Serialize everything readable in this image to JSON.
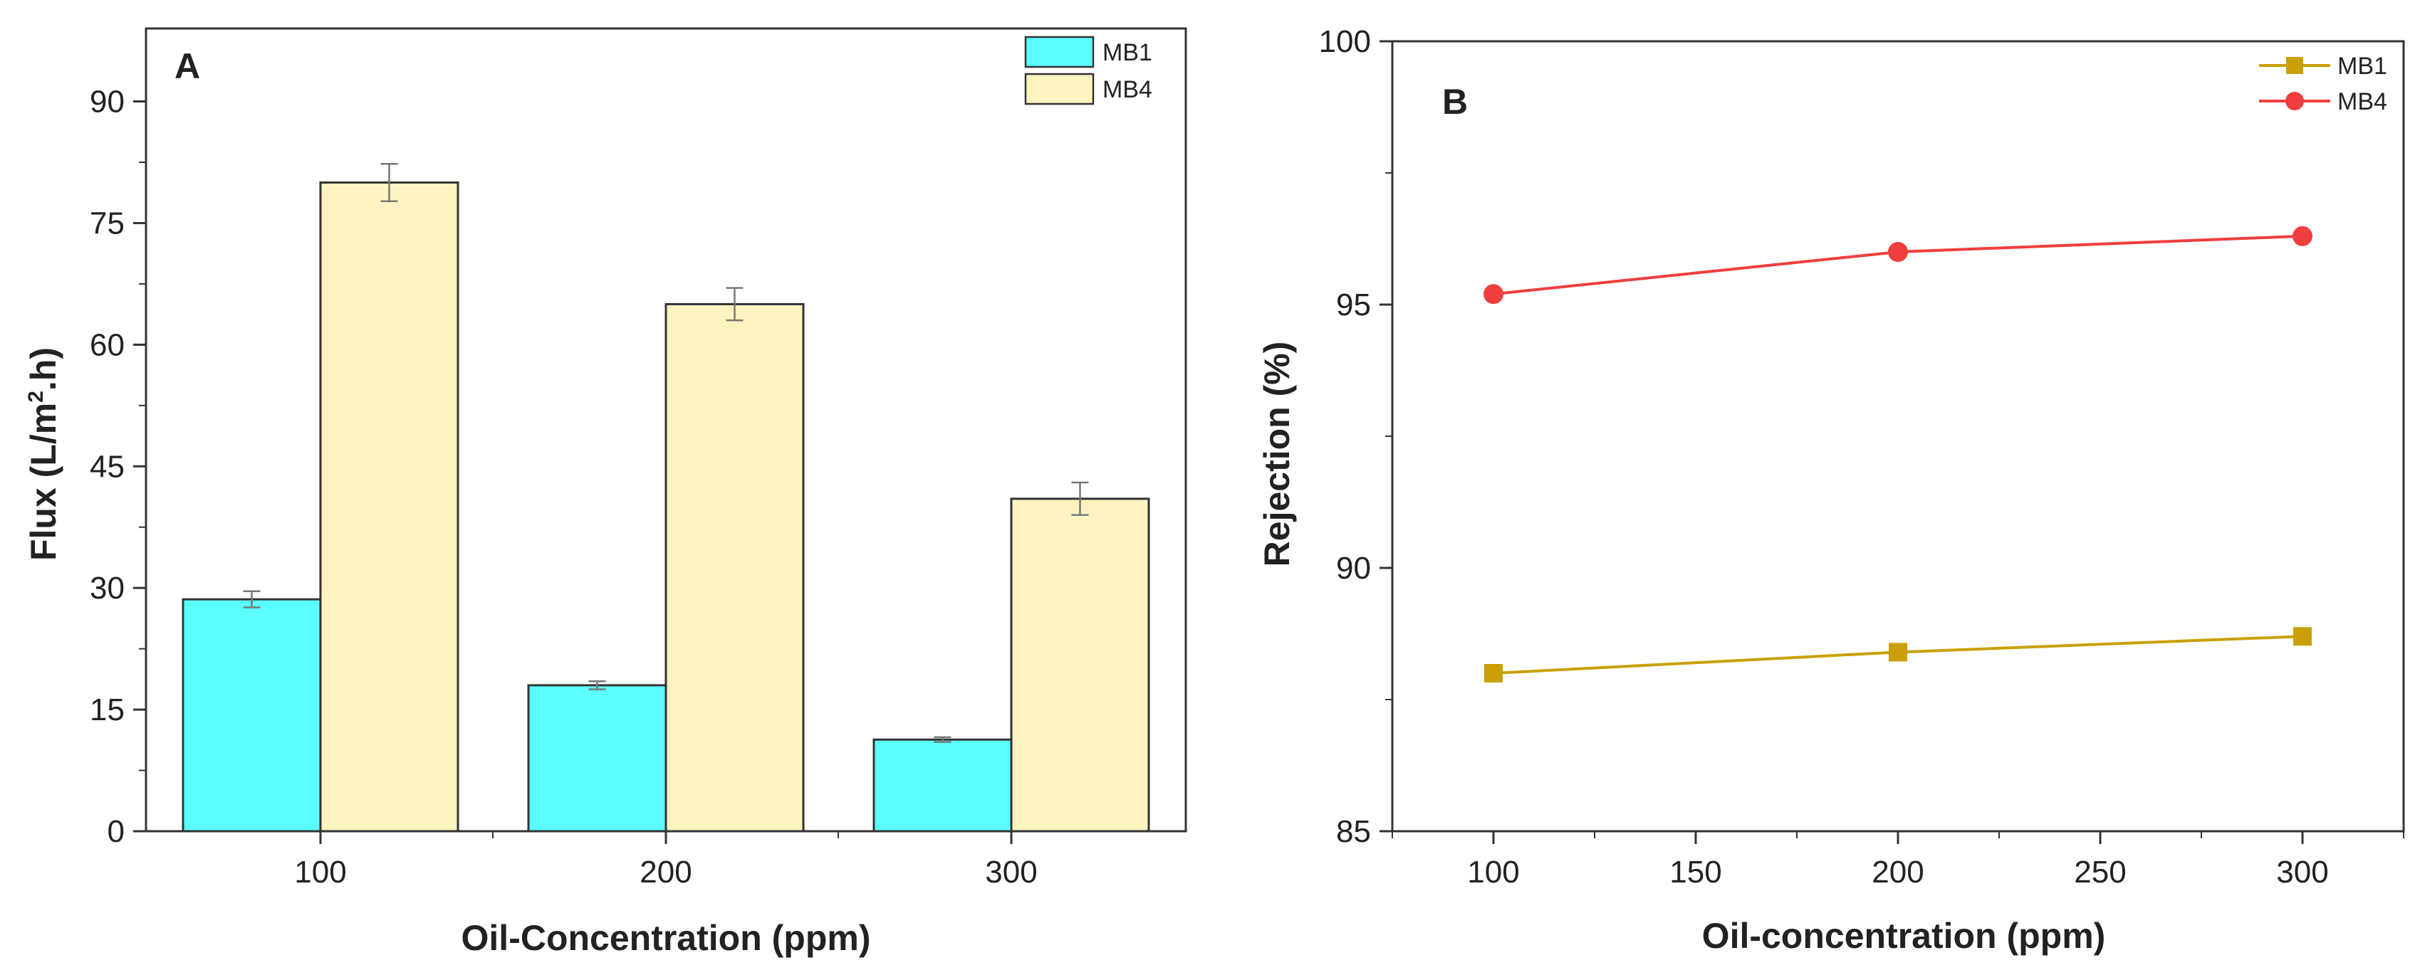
{
  "chart_data": [
    {
      "panel": "A",
      "type": "bar",
      "categories": [
        "100",
        "200",
        "300"
      ],
      "series": [
        {
          "name": "MB1",
          "color": "#5AFFFF",
          "values": [
            28.6,
            18.0,
            11.3
          ],
          "errors": [
            1.0,
            0.5,
            0.3
          ]
        },
        {
          "name": "MB4",
          "color": "#FFF3C0",
          "values": [
            80.0,
            65.0,
            41.0
          ],
          "errors": [
            2.3,
            2.0,
            2.0
          ]
        }
      ],
      "xlabel": "Oil-Concentration (ppm)",
      "ylabel_parts": [
        "Flux (L/m",
        "2",
        ".h)"
      ],
      "ylim": [
        0,
        99
      ],
      "yticks": [
        0,
        15,
        30,
        45,
        60,
        75,
        90
      ],
      "ytick_labels": [
        "0",
        "15",
        "30",
        "45",
        "60",
        "75",
        "90"
      ],
      "legend_position": "top-right"
    },
    {
      "panel": "B",
      "type": "line",
      "x": [
        100,
        200,
        300
      ],
      "series": [
        {
          "name": "MB1",
          "color": "#C9A005",
          "marker": "square",
          "values": [
            88.0,
            88.4,
            88.7
          ]
        },
        {
          "name": "MB4",
          "color": "#F03E3E",
          "marker": "circle",
          "values": [
            95.2,
            96.0,
            96.3
          ]
        }
      ],
      "xlabel": "Oil-concentration (ppm)",
      "ylabel": "Rejection (%)",
      "xlim": [
        75,
        325
      ],
      "xticks": [
        100,
        150,
        200,
        250,
        300
      ],
      "xtick_labels": [
        "100",
        "150",
        "200",
        "250",
        "300"
      ],
      "ylim": [
        85,
        100
      ],
      "yticks": [
        85,
        90,
        95,
        100
      ],
      "ytick_labels": [
        "85",
        "90",
        "95",
        "100"
      ],
      "legend_position": "top-right"
    }
  ]
}
